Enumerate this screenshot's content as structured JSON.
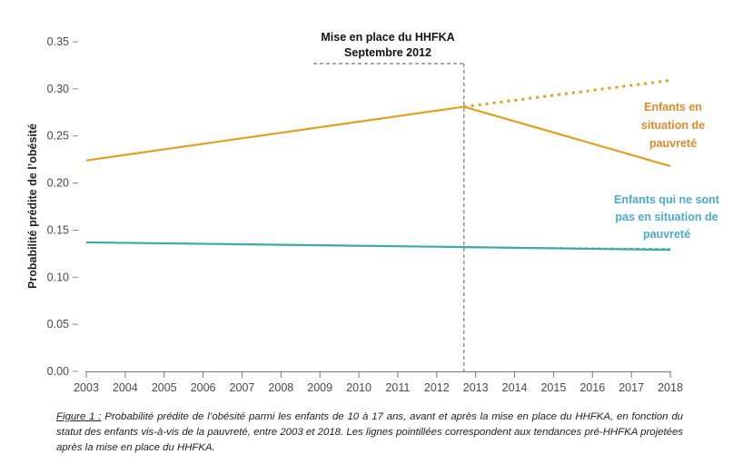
{
  "chart_data": {
    "type": "line",
    "x": [
      2003,
      2004,
      2005,
      2006,
      2007,
      2008,
      2009,
      2010,
      2011,
      2012,
      2013,
      2014,
      2015,
      2016,
      2017,
      2018
    ],
    "ylabel": "Probabilité prédite de l’obésité",
    "ylim": [
      0,
      0.35
    ],
    "yticks": [
      "0.00",
      "0.05",
      "0.10",
      "0.15",
      "0.20",
      "0.25",
      "0.30",
      "0.35"
    ],
    "xticks": [
      "2003",
      "2004",
      "2005",
      "2006",
      "2007",
      "2008",
      "2009",
      "2010",
      "2011",
      "2012",
      "2013",
      "2014",
      "2015",
      "2016",
      "2017",
      "2018"
    ],
    "grid": false,
    "series": [
      {
        "name": "Enfants en situation de pauvreté",
        "color": "#E0A020",
        "label_color": "#E08A2A",
        "actual": [
          [
            2003,
            0.224
          ],
          [
            2012.7,
            0.281
          ],
          [
            2018,
            0.218
          ]
        ],
        "projected": [
          [
            2012.7,
            0.281
          ],
          [
            2018,
            0.309
          ]
        ]
      },
      {
        "name": "Enfants qui ne sont pas en situation de pauvreté",
        "color": "#3AABA8",
        "label_color": "#4AAAD0",
        "actual": [
          [
            2003,
            0.137
          ],
          [
            2012.7,
            0.132
          ],
          [
            2018,
            0.129
          ]
        ],
        "projected": [
          [
            2012.7,
            0.132
          ],
          [
            2018,
            0.13
          ]
        ]
      }
    ],
    "annotations": {
      "intervention_x": 2012.7,
      "intervention_label": [
        "Mise en place du HHFKA",
        "Septembre 2012"
      ],
      "poverty_label": [
        "Enfants en",
        "situation de",
        "pauvreté"
      ],
      "nonpoverty_label": [
        "Enfants qui ne sont",
        "pas en situation de",
        "pauvreté"
      ]
    }
  },
  "caption": {
    "figure_label": "Figure 1 :",
    "text": " Probabilité prédite de l’obésité parmi les enfants de 10 à 17 ans, avant et après la mise en place du HHFKA, en fonction du statut des enfants vis-à-vis de la pauvreté, entre 2003 et 2018. Les lignes pointillées correspondent aux tendances pré-HHFKA projetées après la mise en place du HHFKA."
  }
}
